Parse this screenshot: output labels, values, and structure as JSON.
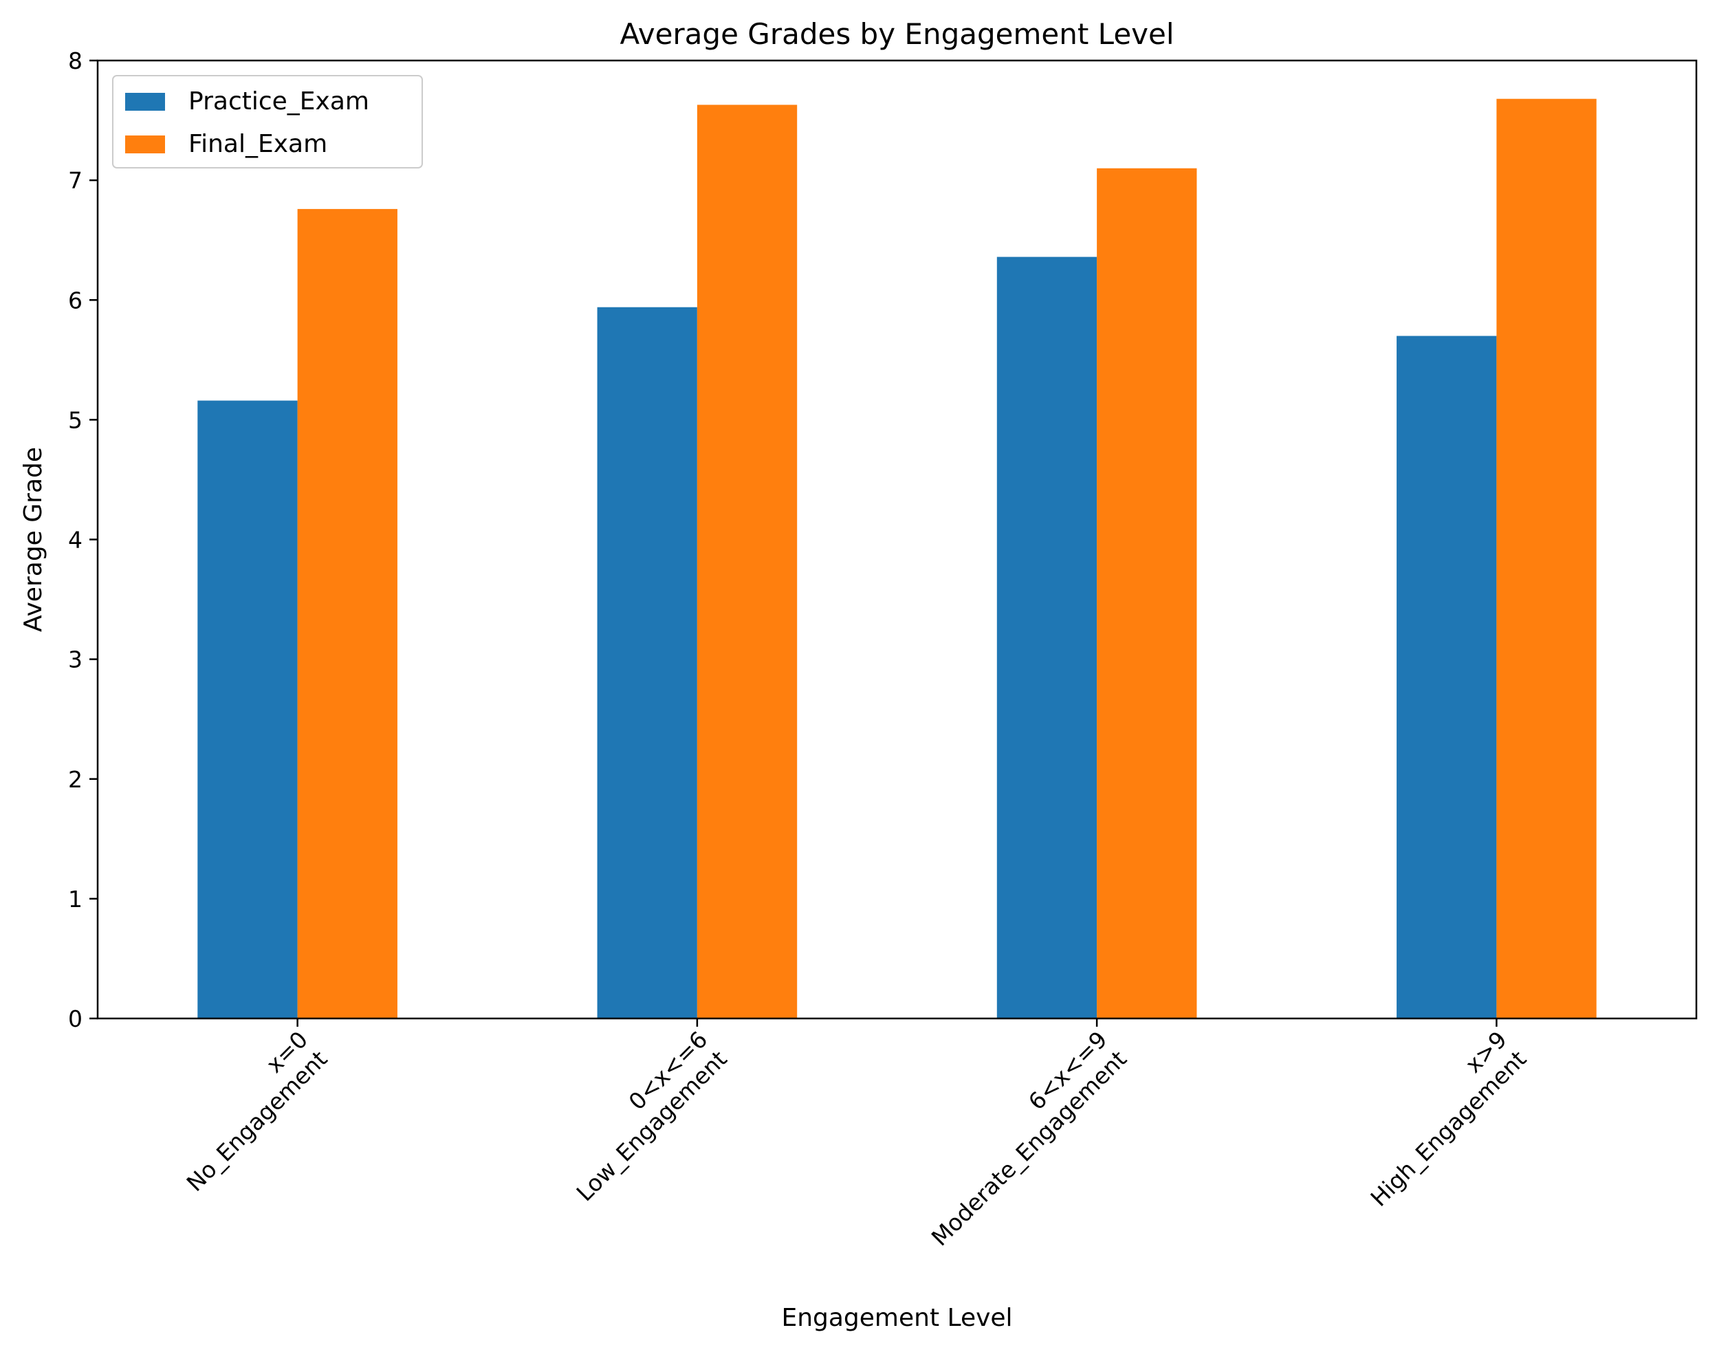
{
  "chart_data": {
    "type": "bar",
    "title": "Average Grades by Engagement Level",
    "xlabel": "Engagement Level",
    "ylabel": "Average Grade",
    "categories": [
      [
        "x=0",
        "No_Engagement"
      ],
      [
        "0<x<=6",
        "Low_Engagement"
      ],
      [
        "6<x<=9",
        "Moderate_Engagement"
      ],
      [
        "x>9",
        "High_Engagement"
      ]
    ],
    "series": [
      {
        "name": "Practice_Exam",
        "color": "#1f77b4",
        "values": [
          5.16,
          5.94,
          6.36,
          5.7
        ]
      },
      {
        "name": "Final_Exam",
        "color": "#ff7f0e",
        "values": [
          6.76,
          7.63,
          7.1,
          7.68
        ]
      }
    ],
    "ylim": [
      0,
      8
    ],
    "yticks": [
      0,
      1,
      2,
      3,
      4,
      5,
      6,
      7,
      8
    ],
    "grid": false,
    "legend_position": "top-left"
  }
}
